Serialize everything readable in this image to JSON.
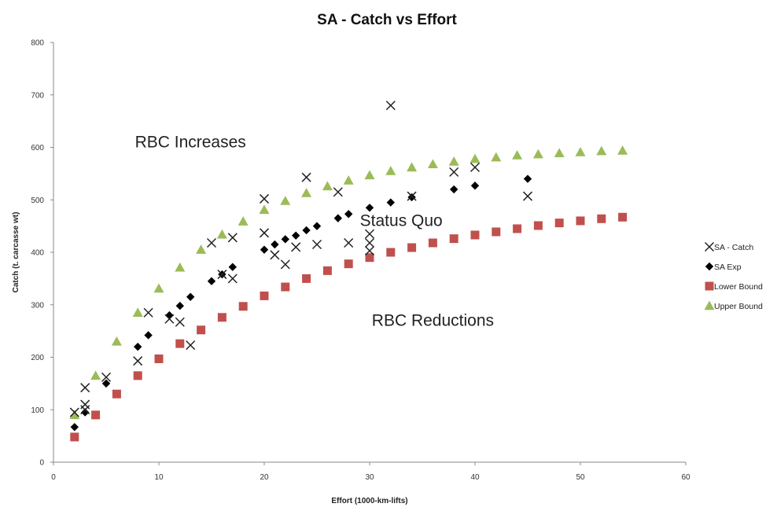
{
  "chart_data": {
    "type": "scatter",
    "title": "SA - Catch vs Effort",
    "xlabel": "Effort (1000-km-lifts)",
    "ylabel": "Catch (t. carcasse wt)",
    "xlim": [
      0,
      60
    ],
    "ylim": [
      0,
      800
    ],
    "xticks": [
      "0",
      "10",
      "20",
      "30",
      "40",
      "50",
      "60"
    ],
    "yticks": [
      "0",
      "100",
      "200",
      "300",
      "400",
      "500",
      "600",
      "700",
      "800"
    ],
    "grid": false,
    "legend_position": "right",
    "annotations": [
      {
        "text": "RBC Increases",
        "x": 13,
        "y": 600
      },
      {
        "text": "Status Quo",
        "x": 33,
        "y": 450
      },
      {
        "text": "RBC Reductions",
        "x": 36,
        "y": 260
      }
    ],
    "series": [
      {
        "name": "SA - Catch",
        "marker": "x",
        "color": "#222222",
        "points": [
          [
            2,
            95
          ],
          [
            3,
            142
          ],
          [
            3,
            110
          ],
          [
            3,
            100
          ],
          [
            5,
            162
          ],
          [
            8,
            193
          ],
          [
            9,
            285
          ],
          [
            11,
            273
          ],
          [
            12,
            267
          ],
          [
            13,
            223
          ],
          [
            15,
            418
          ],
          [
            16,
            358
          ],
          [
            17,
            428
          ],
          [
            17,
            350
          ],
          [
            20,
            502
          ],
          [
            20,
            437
          ],
          [
            21,
            395
          ],
          [
            22,
            377
          ],
          [
            23,
            410
          ],
          [
            24,
            543
          ],
          [
            25,
            415
          ],
          [
            27,
            515
          ],
          [
            28,
            418
          ],
          [
            30,
            435
          ],
          [
            30,
            418
          ],
          [
            30,
            403
          ],
          [
            32,
            680
          ],
          [
            34,
            507
          ],
          [
            38,
            553
          ],
          [
            40,
            562
          ],
          [
            45,
            507
          ]
        ]
      },
      {
        "name": "SA Exp",
        "marker": "diamond",
        "color": "#000000",
        "points": [
          [
            2,
            67
          ],
          [
            3,
            95
          ],
          [
            5,
            150
          ],
          [
            8,
            220
          ],
          [
            9,
            242
          ],
          [
            11,
            280
          ],
          [
            12,
            298
          ],
          [
            13,
            315
          ],
          [
            15,
            345
          ],
          [
            16,
            358
          ],
          [
            17,
            372
          ],
          [
            20,
            405
          ],
          [
            21,
            415
          ],
          [
            22,
            425
          ],
          [
            23,
            432
          ],
          [
            24,
            442
          ],
          [
            25,
            450
          ],
          [
            27,
            465
          ],
          [
            28,
            473
          ],
          [
            30,
            485
          ],
          [
            32,
            495
          ],
          [
            34,
            505
          ],
          [
            38,
            520
          ],
          [
            40,
            527
          ],
          [
            45,
            540
          ]
        ]
      },
      {
        "name": "Lower Bound",
        "marker": "square",
        "color": "#c0504d",
        "points": [
          [
            2,
            48
          ],
          [
            4,
            90
          ],
          [
            6,
            130
          ],
          [
            8,
            165
          ],
          [
            10,
            197
          ],
          [
            12,
            226
          ],
          [
            14,
            252
          ],
          [
            16,
            276
          ],
          [
            18,
            297
          ],
          [
            20,
            317
          ],
          [
            22,
            334
          ],
          [
            24,
            350
          ],
          [
            26,
            365
          ],
          [
            28,
            378
          ],
          [
            30,
            390
          ],
          [
            32,
            400
          ],
          [
            34,
            409
          ],
          [
            36,
            418
          ],
          [
            38,
            426
          ],
          [
            40,
            433
          ],
          [
            42,
            439
          ],
          [
            44,
            445
          ],
          [
            46,
            451
          ],
          [
            48,
            456
          ],
          [
            50,
            460
          ],
          [
            52,
            464
          ],
          [
            54,
            467
          ]
        ]
      },
      {
        "name": "Upper Bound",
        "marker": "triangle",
        "color": "#9bbb59",
        "points": [
          [
            2,
            90
          ],
          [
            4,
            165
          ],
          [
            6,
            230
          ],
          [
            8,
            285
          ],
          [
            10,
            331
          ],
          [
            12,
            371
          ],
          [
            14,
            405
          ],
          [
            16,
            434
          ],
          [
            18,
            459
          ],
          [
            20,
            481
          ],
          [
            22,
            498
          ],
          [
            24,
            513
          ],
          [
            26,
            526
          ],
          [
            28,
            537
          ],
          [
            30,
            547
          ],
          [
            32,
            555
          ],
          [
            34,
            562
          ],
          [
            36,
            568
          ],
          [
            38,
            573
          ],
          [
            40,
            578
          ],
          [
            42,
            581
          ],
          [
            44,
            585
          ],
          [
            46,
            587
          ],
          [
            48,
            589
          ],
          [
            50,
            591
          ],
          [
            52,
            593
          ],
          [
            54,
            594
          ]
        ]
      }
    ]
  }
}
